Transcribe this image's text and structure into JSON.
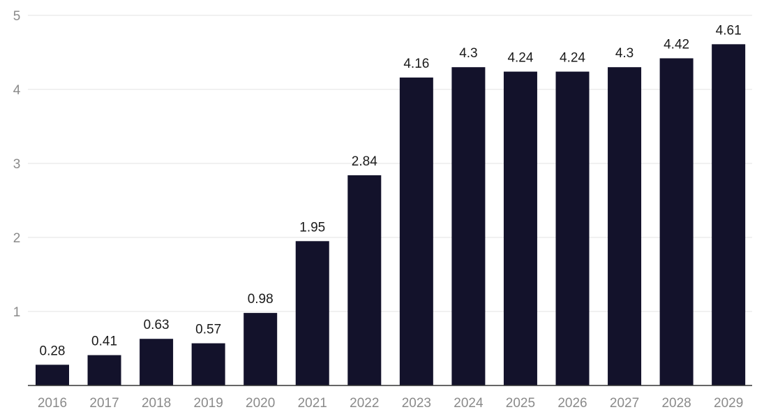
{
  "chart_data": {
    "type": "bar",
    "title": "",
    "xlabel": "",
    "ylabel": "",
    "categories": [
      "2016",
      "2017",
      "2018",
      "2019",
      "2020",
      "2021",
      "2022",
      "2023",
      "2024",
      "2025",
      "2026",
      "2027",
      "2028",
      "2029"
    ],
    "values": [
      0.28,
      0.41,
      0.63,
      0.57,
      0.98,
      1.95,
      2.84,
      4.16,
      4.3,
      4.24,
      4.24,
      4.3,
      4.42,
      4.61
    ],
    "value_labels": [
      "0.28",
      "0.41",
      "0.63",
      "0.57",
      "0.98",
      "1.95",
      "2.84",
      "4.16",
      "4.3",
      "4.24",
      "4.24",
      "4.3",
      "4.42",
      "4.61"
    ],
    "yticks": [
      "1",
      "2",
      "3",
      "4",
      "5"
    ],
    "ylim": [
      0,
      5
    ],
    "grid": true,
    "legend": "none",
    "colors": {
      "bar": "#13122b",
      "grid": "#e3e3e3",
      "axis": "#333333",
      "tick_text": "#8a8a8a",
      "label_text": "#1a1a1a"
    }
  }
}
